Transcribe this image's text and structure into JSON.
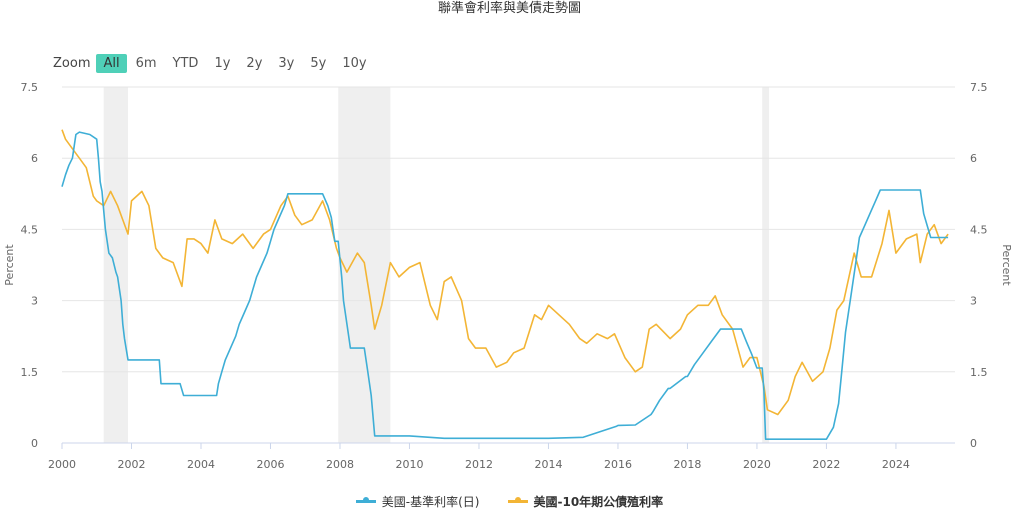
{
  "title": "聯準會利率與美債走勢圖",
  "zoom": {
    "label": "Zoom",
    "buttons": [
      "All",
      "6m",
      "YTD",
      "1y",
      "2y",
      "3y",
      "5y",
      "10y"
    ],
    "active": "All"
  },
  "colors": {
    "fed": "#3eaed6",
    "t10": "#f3b535",
    "recession": "#efefef",
    "grid": "#e6e6e6"
  },
  "chart_data": {
    "type": "line",
    "title": "聯準會利率與美債走勢圖",
    "ylabel_left": "Percent",
    "ylabel_right": "Percent",
    "xlim": [
      2000,
      2025.7
    ],
    "ylim": [
      0,
      7.5
    ],
    "yticks": [
      "0",
      "1.5",
      "3",
      "4.5",
      "6",
      "7.5"
    ],
    "xticks": [
      "2000",
      "2002",
      "2004",
      "2006",
      "2008",
      "2010",
      "2012",
      "2014",
      "2016",
      "2018",
      "2020",
      "2022",
      "2024"
    ],
    "recessions": [
      [
        2001.2,
        2001.9
      ],
      [
        2007.95,
        2009.45
      ],
      [
        2020.15,
        2020.35
      ]
    ],
    "legend_position": "bottom-center",
    "grid": true,
    "series": [
      {
        "name": "美國-基準利率(日)",
        "x": [
          2000.0,
          2000.1,
          2000.2,
          2000.3,
          2000.4,
          2000.5,
          2000.8,
          2001.0,
          2001.05,
          2001.1,
          2001.15,
          2001.2,
          2001.25,
          2001.35,
          2001.45,
          2001.55,
          2001.6,
          2001.7,
          2001.75,
          2001.8,
          2001.9,
          2002.0,
          2002.5,
          2002.8,
          2002.85,
          2003.0,
          2003.4,
          2003.5,
          2004.0,
          2004.45,
          2004.5,
          2004.6,
          2004.7,
          2004.85,
          2005.0,
          2005.1,
          2005.25,
          2005.4,
          2005.5,
          2005.6,
          2005.75,
          2005.9,
          2006.0,
          2006.1,
          2006.25,
          2006.4,
          2006.5,
          2007.0,
          2007.5,
          2007.65,
          2007.75,
          2007.8,
          2007.85,
          2007.95,
          2008.05,
          2008.1,
          2008.25,
          2008.3,
          2008.7,
          2008.8,
          2008.9,
          2009.0,
          2009.5,
          2010.0,
          2011.0,
          2012.0,
          2013.0,
          2014.0,
          2015.0,
          2015.95,
          2016.0,
          2016.5,
          2016.95,
          2017.0,
          2017.2,
          2017.45,
          2017.5,
          2017.95,
          2018.0,
          2018.2,
          2018.45,
          2018.7,
          2018.95,
          2019.0,
          2019.55,
          2019.7,
          2019.85,
          2020.0,
          2020.15,
          2020.2,
          2020.25,
          2021.0,
          2022.0,
          2022.2,
          2022.35,
          2022.45,
          2022.55,
          2022.7,
          2022.85,
          2022.95,
          2023.1,
          2023.25,
          2023.4,
          2023.55,
          2024.0,
          2024.7,
          2024.8,
          2024.9,
          2025.0,
          2025.5
        ],
        "values": [
          5.4,
          5.65,
          5.85,
          6.0,
          6.5,
          6.55,
          6.5,
          6.4,
          5.98,
          5.5,
          5.3,
          4.9,
          4.5,
          4.0,
          3.9,
          3.6,
          3.5,
          3.0,
          2.5,
          2.2,
          1.75,
          1.75,
          1.75,
          1.75,
          1.25,
          1.25,
          1.25,
          1.0,
          1.0,
          1.0,
          1.25,
          1.5,
          1.75,
          2.0,
          2.25,
          2.5,
          2.75,
          3.0,
          3.25,
          3.5,
          3.75,
          4.0,
          4.25,
          4.5,
          4.75,
          5.0,
          5.25,
          5.25,
          5.25,
          5.0,
          4.75,
          4.5,
          4.25,
          4.25,
          3.5,
          3.0,
          2.25,
          2.0,
          2.0,
          1.5,
          1.0,
          0.15,
          0.15,
          0.15,
          0.1,
          0.1,
          0.1,
          0.1,
          0.12,
          0.35,
          0.37,
          0.38,
          0.6,
          0.65,
          0.9,
          1.15,
          1.15,
          1.4,
          1.4,
          1.65,
          1.9,
          2.15,
          2.4,
          2.4,
          2.4,
          2.13,
          1.87,
          1.58,
          1.58,
          1.1,
          0.08,
          0.08,
          0.08,
          0.33,
          0.83,
          1.58,
          2.33,
          3.08,
          3.83,
          4.33,
          4.58,
          4.83,
          5.08,
          5.33,
          5.33,
          5.33,
          4.83,
          4.58,
          4.33,
          4.33
        ]
      },
      {
        "name": "美國-10年期公債殖利率",
        "x": [
          2000.0,
          2000.1,
          2000.3,
          2000.5,
          2000.7,
          2000.9,
          2001.0,
          2001.2,
          2001.4,
          2001.6,
          2001.75,
          2001.9,
          2002.0,
          2002.3,
          2002.5,
          2002.7,
          2002.9,
          2003.2,
          2003.45,
          2003.6,
          2003.8,
          2004.0,
          2004.2,
          2004.4,
          2004.6,
          2004.9,
          2005.2,
          2005.5,
          2005.8,
          2006.0,
          2006.3,
          2006.5,
          2006.7,
          2006.9,
          2007.2,
          2007.5,
          2007.7,
          2007.9,
          2008.0,
          2008.2,
          2008.5,
          2008.7,
          2008.9,
          2009.0,
          2009.2,
          2009.45,
          2009.7,
          2010.0,
          2010.3,
          2010.6,
          2010.8,
          2011.0,
          2011.2,
          2011.5,
          2011.7,
          2011.9,
          2012.2,
          2012.5,
          2012.8,
          2013.0,
          2013.3,
          2013.6,
          2013.8,
          2014.0,
          2014.3,
          2014.6,
          2014.9,
          2015.1,
          2015.4,
          2015.7,
          2015.9,
          2016.2,
          2016.5,
          2016.7,
          2016.9,
          2017.1,
          2017.5,
          2017.8,
          2018.0,
          2018.3,
          2018.6,
          2018.8,
          2019.0,
          2019.3,
          2019.6,
          2019.8,
          2020.0,
          2020.2,
          2020.3,
          2020.6,
          2020.9,
          2021.1,
          2021.3,
          2021.6,
          2021.9,
          2022.1,
          2022.3,
          2022.5,
          2022.8,
          2023.0,
          2023.3,
          2023.6,
          2023.8,
          2024.0,
          2024.3,
          2024.6,
          2024.7,
          2024.9,
          2025.1,
          2025.3,
          2025.5
        ],
        "values": [
          6.6,
          6.4,
          6.2,
          6.0,
          5.8,
          5.2,
          5.1,
          5.0,
          5.3,
          5.0,
          4.7,
          4.4,
          5.1,
          5.3,
          5.0,
          4.1,
          3.9,
          3.8,
          3.3,
          4.3,
          4.3,
          4.2,
          4.0,
          4.7,
          4.3,
          4.2,
          4.4,
          4.1,
          4.4,
          4.5,
          5.0,
          5.2,
          4.8,
          4.6,
          4.7,
          5.1,
          4.7,
          4.1,
          3.9,
          3.6,
          4.0,
          3.8,
          2.9,
          2.4,
          2.9,
          3.8,
          3.5,
          3.7,
          3.8,
          2.9,
          2.6,
          3.4,
          3.5,
          3.0,
          2.2,
          2.0,
          2.0,
          1.6,
          1.7,
          1.9,
          2.0,
          2.7,
          2.6,
          2.9,
          2.7,
          2.5,
          2.2,
          2.1,
          2.3,
          2.2,
          2.3,
          1.8,
          1.5,
          1.6,
          2.4,
          2.5,
          2.2,
          2.4,
          2.7,
          2.9,
          2.9,
          3.1,
          2.7,
          2.4,
          1.6,
          1.8,
          1.8,
          1.2,
          0.7,
          0.6,
          0.9,
          1.4,
          1.7,
          1.3,
          1.5,
          2.0,
          2.8,
          3.0,
          4.0,
          3.5,
          3.5,
          4.2,
          4.9,
          4.0,
          4.3,
          4.4,
          3.8,
          4.4,
          4.6,
          4.2,
          4.4
        ]
      }
    ]
  }
}
